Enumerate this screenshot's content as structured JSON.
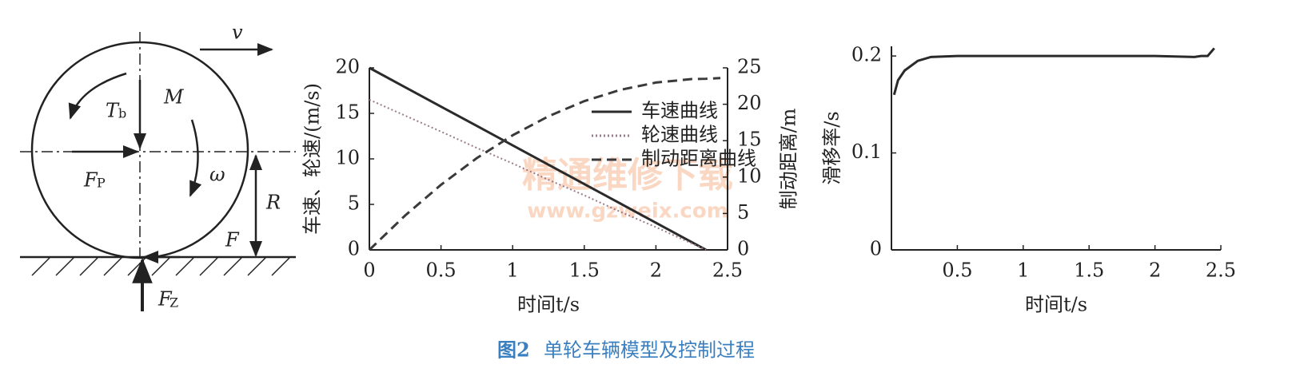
{
  "diagram": {
    "labels": {
      "v": "v",
      "M": "M",
      "T": "T",
      "T_sub": "b",
      "omega": "ω",
      "Fp": "F",
      "Fp_sub": "P",
      "R": "R",
      "F": "F",
      "Fz": "F",
      "Fz_sub": "Z"
    }
  },
  "chart_data": [
    {
      "type": "line",
      "xlabel": "时间t/s",
      "ylabel": "车速、轮速/(m/s)",
      "y2label": "制动距离/m",
      "xlim": [
        0,
        2.5
      ],
      "xticks": [
        0,
        0.5,
        1,
        1.5,
        2,
        2.5
      ],
      "ylim": [
        0,
        20
      ],
      "yticks": [
        0,
        5,
        10,
        15,
        20
      ],
      "y2lim": [
        0,
        25
      ],
      "y2ticks": [
        0,
        5,
        10,
        15,
        20,
        25
      ],
      "x": [
        0,
        0.25,
        0.5,
        0.75,
        1,
        1.25,
        1.5,
        1.75,
        2,
        2.25,
        2.35,
        2.45
      ],
      "series": [
        {
          "name": "车速曲线",
          "color": "#2a2a2a",
          "style": "solid",
          "values": [
            20,
            17.87,
            15.74,
            13.62,
            11.49,
            9.36,
            7.23,
            5.11,
            2.98,
            0.85,
            0,
            null
          ]
        },
        {
          "name": "轮速曲线",
          "color": "#9a7a8a",
          "style": "dotted",
          "values": [
            16.5,
            14.75,
            13,
            11.2,
            9.5,
            7.7,
            6,
            4.2,
            2.5,
            0.7,
            0,
            null
          ]
        },
        {
          "name": "制动距离曲线",
          "color": "#3a3a3a",
          "style": "dashed",
          "axis": "y2",
          "values": [
            0,
            4.73,
            8.94,
            12.61,
            15.74,
            18.35,
            20.43,
            21.97,
            22.98,
            23.46,
            23.5,
            23.6
          ]
        }
      ],
      "legend": "upper right"
    },
    {
      "type": "line",
      "xlabel": "时间t/s",
      "ylabel": "滑移率/s",
      "xlim": [
        0,
        2.5
      ],
      "xticks": [
        0.5,
        1,
        1.5,
        2,
        2.5
      ],
      "ylim": [
        0,
        0.21
      ],
      "yticks": [
        0,
        0.1,
        0.2
      ],
      "x": [
        0.02,
        0.05,
        0.1,
        0.2,
        0.3,
        0.5,
        1,
        1.5,
        2,
        2.3,
        2.35,
        2.4,
        2.45
      ],
      "series": [
        {
          "color": "#2a2a2a",
          "style": "solid",
          "values": [
            0.16,
            0.175,
            0.185,
            0.195,
            0.199,
            0.2,
            0.2,
            0.2,
            0.2,
            0.199,
            0.2,
            0.2,
            0.208
          ]
        }
      ]
    }
  ],
  "watermark": {
    "text": "精通维修下载",
    "url": "www.gzweix.com"
  },
  "caption": {
    "label": "图2",
    "text": "单轮车辆模型及控制过程"
  }
}
